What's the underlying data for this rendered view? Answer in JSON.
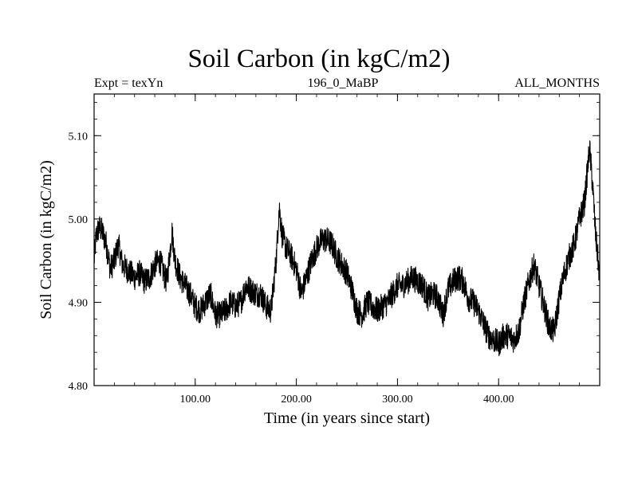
{
  "header": {
    "title": "Soil Carbon (in kgC/m2)",
    "left": "Expt = texYn",
    "center": "196_0_MaBP",
    "right": "ALL_MONTHS"
  },
  "chart_data": {
    "type": "line",
    "xlabel": "Time (in years since start)",
    "ylabel": "Soil Carbon (in kgC/m2)",
    "xlim": [
      0,
      500
    ],
    "ylim": [
      4.8,
      5.15
    ],
    "xticks": [
      100,
      200,
      300,
      400
    ],
    "xtick_labels": [
      "100.00",
      "200.00",
      "300.00",
      "400.00"
    ],
    "yticks": [
      4.8,
      4.9,
      5.0,
      5.1
    ],
    "ytick_labels": [
      "4.80",
      "4.90",
      "5.00",
      "5.10"
    ],
    "grid": false,
    "line_color": "#000000",
    "series": [
      {
        "x": [
          0,
          2,
          5,
          8,
          12,
          16,
          20,
          24,
          28,
          32,
          36,
          40,
          45,
          50,
          55,
          60,
          65,
          70,
          72,
          75,
          77,
          80,
          85,
          90,
          95,
          100,
          105,
          110,
          115,
          120,
          125,
          130,
          135,
          140,
          145,
          150,
          155,
          160,
          165,
          170,
          175,
          180,
          183,
          186,
          190,
          195,
          200,
          205,
          210,
          215,
          220,
          225,
          230,
          235,
          240,
          245,
          250,
          255,
          260,
          265,
          270,
          275,
          280,
          285,
          290,
          295,
          300,
          305,
          310,
          315,
          320,
          325,
          330,
          335,
          340,
          345,
          350,
          355,
          360,
          365,
          370,
          375,
          380,
          385,
          390,
          395,
          400,
          405,
          410,
          415,
          420,
          425,
          430,
          435,
          440,
          445,
          450,
          455,
          460,
          465,
          470,
          475,
          480,
          485,
          488,
          490,
          493,
          496,
          500
        ],
        "y": [
          4.95,
          4.98,
          4.99,
          4.985,
          4.97,
          4.94,
          4.95,
          4.97,
          4.945,
          4.94,
          4.935,
          4.93,
          4.935,
          4.925,
          4.93,
          4.945,
          4.95,
          4.93,
          4.925,
          4.96,
          4.985,
          4.95,
          4.93,
          4.92,
          4.91,
          4.895,
          4.89,
          4.9,
          4.91,
          4.885,
          4.885,
          4.89,
          4.9,
          4.895,
          4.9,
          4.92,
          4.915,
          4.91,
          4.91,
          4.895,
          4.89,
          4.95,
          5.015,
          4.98,
          4.965,
          4.955,
          4.94,
          4.91,
          4.93,
          4.95,
          4.965,
          4.975,
          4.975,
          4.97,
          4.955,
          4.945,
          4.935,
          4.915,
          4.89,
          4.885,
          4.9,
          4.895,
          4.89,
          4.895,
          4.9,
          4.91,
          4.92,
          4.92,
          4.925,
          4.93,
          4.925,
          4.92,
          4.905,
          4.91,
          4.905,
          4.885,
          4.915,
          4.925,
          4.93,
          4.925,
          4.905,
          4.9,
          4.89,
          4.875,
          4.86,
          4.855,
          4.85,
          4.86,
          4.86,
          4.855,
          4.865,
          4.9,
          4.925,
          4.945,
          4.92,
          4.895,
          4.87,
          4.865,
          4.905,
          4.935,
          4.955,
          4.97,
          5.0,
          5.02,
          5.06,
          5.085,
          5.04,
          4.98,
          4.93
        ]
      }
    ]
  }
}
